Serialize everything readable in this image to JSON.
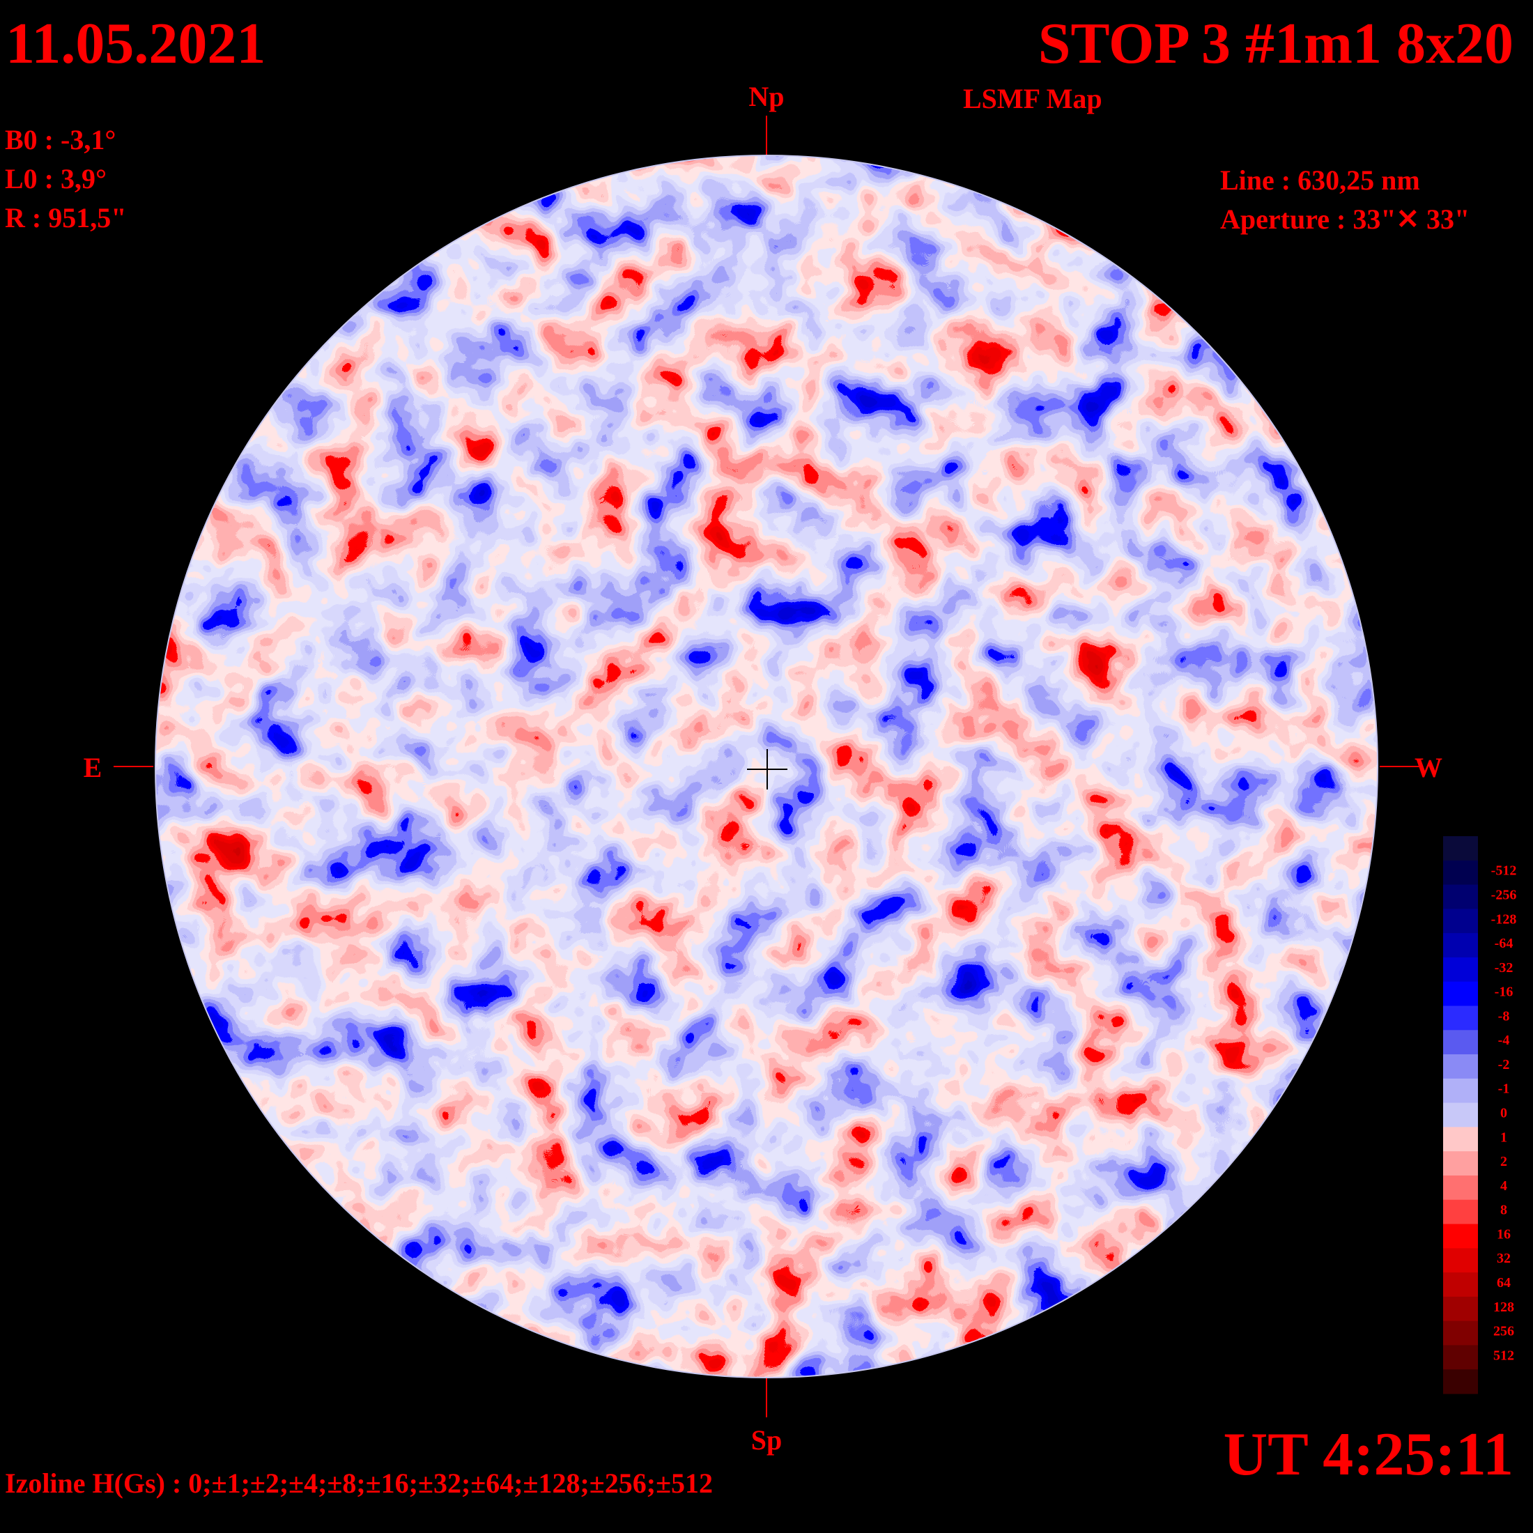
{
  "header": {
    "date": "11.05.2021",
    "title": "STOP 3 #1m1 8x20",
    "subtitle": "LSMF  Map"
  },
  "params": {
    "b0": "B0 : -3,1°",
    "l0": "L0 : 3,9°",
    "r": "R  : 951,5\""
  },
  "instrument": {
    "line": "Line :  630,25 nm",
    "aperture": "Aperture : 33\"✕ 33\""
  },
  "directions": {
    "north": "Np",
    "south": "Sp",
    "east": "E",
    "west": "W"
  },
  "legend": {
    "labels": [
      "-512",
      "-256",
      "-128",
      "-64",
      "-32",
      "-16",
      "-8",
      "-4",
      "-2",
      "-1",
      "0",
      "1",
      "2",
      "4",
      "8",
      "16",
      "32",
      "64",
      "128",
      "256",
      "512"
    ]
  },
  "footer": {
    "izoline": "Izoline H(Gs) : 0;±1;±2;±4;±8;±16;±32;±64;±128;±256;±512",
    "time": "UT 4:25:11"
  }
}
